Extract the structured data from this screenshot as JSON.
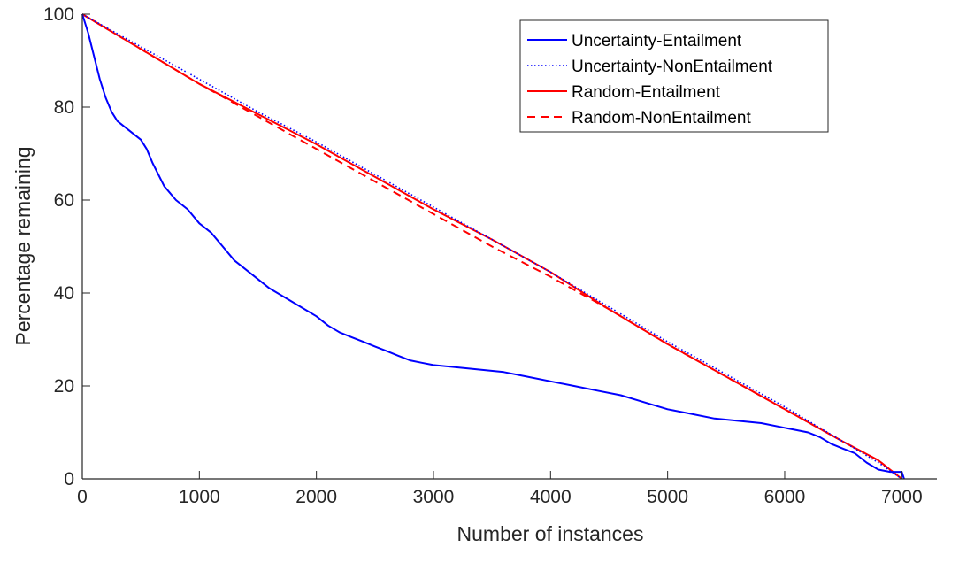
{
  "colors": {
    "blue": "#0000ff",
    "red": "#ff0000",
    "axis": "#262626"
  },
  "chart_data": {
    "type": "line",
    "xlabel": "Number of instances",
    "ylabel": "Percentage remaining",
    "xlim": [
      0,
      7300
    ],
    "ylim": [
      0,
      100
    ],
    "xticks": [
      0,
      1000,
      2000,
      3000,
      4000,
      5000,
      6000,
      7000
    ],
    "yticks": [
      0,
      20,
      40,
      60,
      80,
      100
    ],
    "grid": false,
    "legend_position": "top-right",
    "series": [
      {
        "name": "Uncertainty-Entailment",
        "color": "#0000ff",
        "style": "solid",
        "x": [
          0,
          50,
          100,
          150,
          200,
          250,
          300,
          400,
          500,
          550,
          600,
          700,
          800,
          900,
          1000,
          1100,
          1200,
          1300,
          1400,
          1500,
          1600,
          1700,
          1800,
          1900,
          2000,
          2100,
          2200,
          2300,
          2400,
          2500,
          2600,
          2700,
          2800,
          2900,
          3000,
          3200,
          3400,
          3600,
          3800,
          4000,
          4200,
          4400,
          4600,
          4800,
          5000,
          5200,
          5400,
          5600,
          5800,
          6000,
          6100,
          6200,
          6300,
          6400,
          6500,
          6600,
          6700,
          6800,
          6900,
          6950,
          7000,
          7020
        ],
        "y": [
          100,
          96,
          91,
          86,
          82,
          79,
          77,
          75,
          73,
          71,
          68,
          63,
          60,
          58,
          55,
          53,
          50,
          47,
          45,
          43,
          41,
          39.5,
          38,
          36.5,
          35,
          33,
          31.5,
          30.5,
          29.5,
          28.5,
          27.5,
          26.5,
          25.5,
          25,
          24.5,
          24,
          23.5,
          23,
          22,
          21,
          20,
          19,
          18,
          16.5,
          15,
          14,
          13,
          12.5,
          12,
          11,
          10.5,
          10,
          9,
          7.5,
          6.5,
          5.5,
          3.5,
          2,
          1.5,
          1.5,
          1.5,
          0
        ]
      },
      {
        "name": "Uncertainty-NonEntailment",
        "color": "#0000ff",
        "style": "dotted",
        "x": [
          0,
          500,
          1000,
          1500,
          2000,
          2500,
          3000,
          3500,
          4000,
          4500,
          5000,
          5500,
          6000,
          6500,
          6800,
          7000
        ],
        "y": [
          100,
          93,
          86,
          79,
          72.5,
          65.5,
          58.5,
          51.5,
          44.5,
          37,
          29.5,
          22.5,
          15.5,
          8,
          3.5,
          0
        ]
      },
      {
        "name": "Random-Entailment",
        "color": "#ff0000",
        "style": "solid",
        "x": [
          0,
          500,
          1000,
          1500,
          2000,
          2500,
          3000,
          3500,
          4000,
          4500,
          5000,
          5500,
          6000,
          6500,
          6800,
          7000
        ],
        "y": [
          100,
          92.5,
          85,
          78.5,
          72,
          65,
          58,
          51.5,
          44.5,
          36.5,
          29,
          22,
          15,
          8,
          4,
          0
        ]
      },
      {
        "name": "Random-NonEntailment",
        "color": "#ff0000",
        "style": "dashed",
        "x": [
          0,
          500,
          1000,
          1500,
          2000,
          2500,
          3000,
          3500,
          4000,
          4500,
          5000,
          5500,
          6000,
          6500,
          6800,
          7000
        ],
        "y": [
          100,
          92.5,
          85,
          78,
          71,
          64,
          57,
          50,
          43.5,
          36.5,
          29,
          22,
          15,
          8,
          4,
          0
        ]
      }
    ]
  }
}
